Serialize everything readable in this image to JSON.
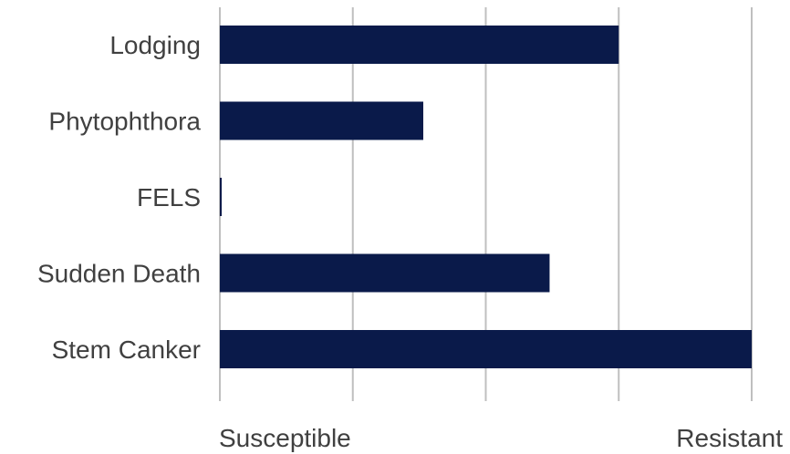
{
  "chart_data": {
    "type": "bar",
    "orientation": "horizontal",
    "categories": [
      "Lodging",
      "Phytophthora",
      "FELS",
      "Sudden Death",
      "Stem Canker"
    ],
    "values": [
      3,
      1.53,
      0.01,
      2.48,
      4
    ],
    "xlim": [
      0,
      4
    ],
    "x_tick_values": [
      0,
      1,
      2,
      3,
      4
    ],
    "x_axis_labels": {
      "min": "Susceptible",
      "max": "Resistant"
    },
    "grid": "vertical",
    "legend": "none",
    "bar_color": "#0a1a4a",
    "gridline_color": "#bfbfbf",
    "label_color": "#404040"
  }
}
